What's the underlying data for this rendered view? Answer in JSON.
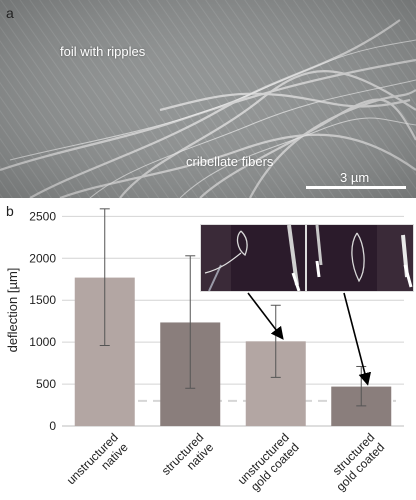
{
  "panel_a": {
    "letter": "a",
    "label_foil": "foil with ripples",
    "label_fibers": "cribellate fibers",
    "scale_bar": "3 µm"
  },
  "panel_b": {
    "letter": "b"
  },
  "colors": {
    "bar_light": "#b3a6a3",
    "bar_dark": "#8a7e7c",
    "grid": "#d4d4d4",
    "reference_line": "#d6d6d6",
    "sem_background": "#8c8f8f",
    "inset_background": "#2a1a2a"
  },
  "chart_data": {
    "type": "bar",
    "title": "",
    "xlabel": "",
    "ylabel": "deflection [µm]",
    "ylim": [
      0,
      2600
    ],
    "yticks": [
      0,
      500,
      1000,
      1500,
      2000,
      2500
    ],
    "grid": true,
    "categories": [
      [
        "unstructured",
        "native"
      ],
      [
        "structured",
        "native"
      ],
      [
        "unstructured",
        "gold coated"
      ],
      [
        "structured",
        "gold coated"
      ]
    ],
    "values": [
      1770,
      1235,
      1010,
      470
    ],
    "error_bars": [
      {
        "low": 960,
        "high": 2590
      },
      {
        "low": 450,
        "high": 2030
      },
      {
        "low": 580,
        "high": 1440
      },
      {
        "low": 240,
        "high": 710
      }
    ],
    "bar_colors": [
      "#b3a6a3",
      "#8a7e7c",
      "#b3a6a3",
      "#8a7e7c"
    ],
    "reference_line_value": 300,
    "insets": [
      {
        "name": "inset-photo-unstructured-gold",
        "points_to_category": 2
      },
      {
        "name": "inset-photo-structured-gold",
        "points_to_category": 3
      }
    ]
  }
}
